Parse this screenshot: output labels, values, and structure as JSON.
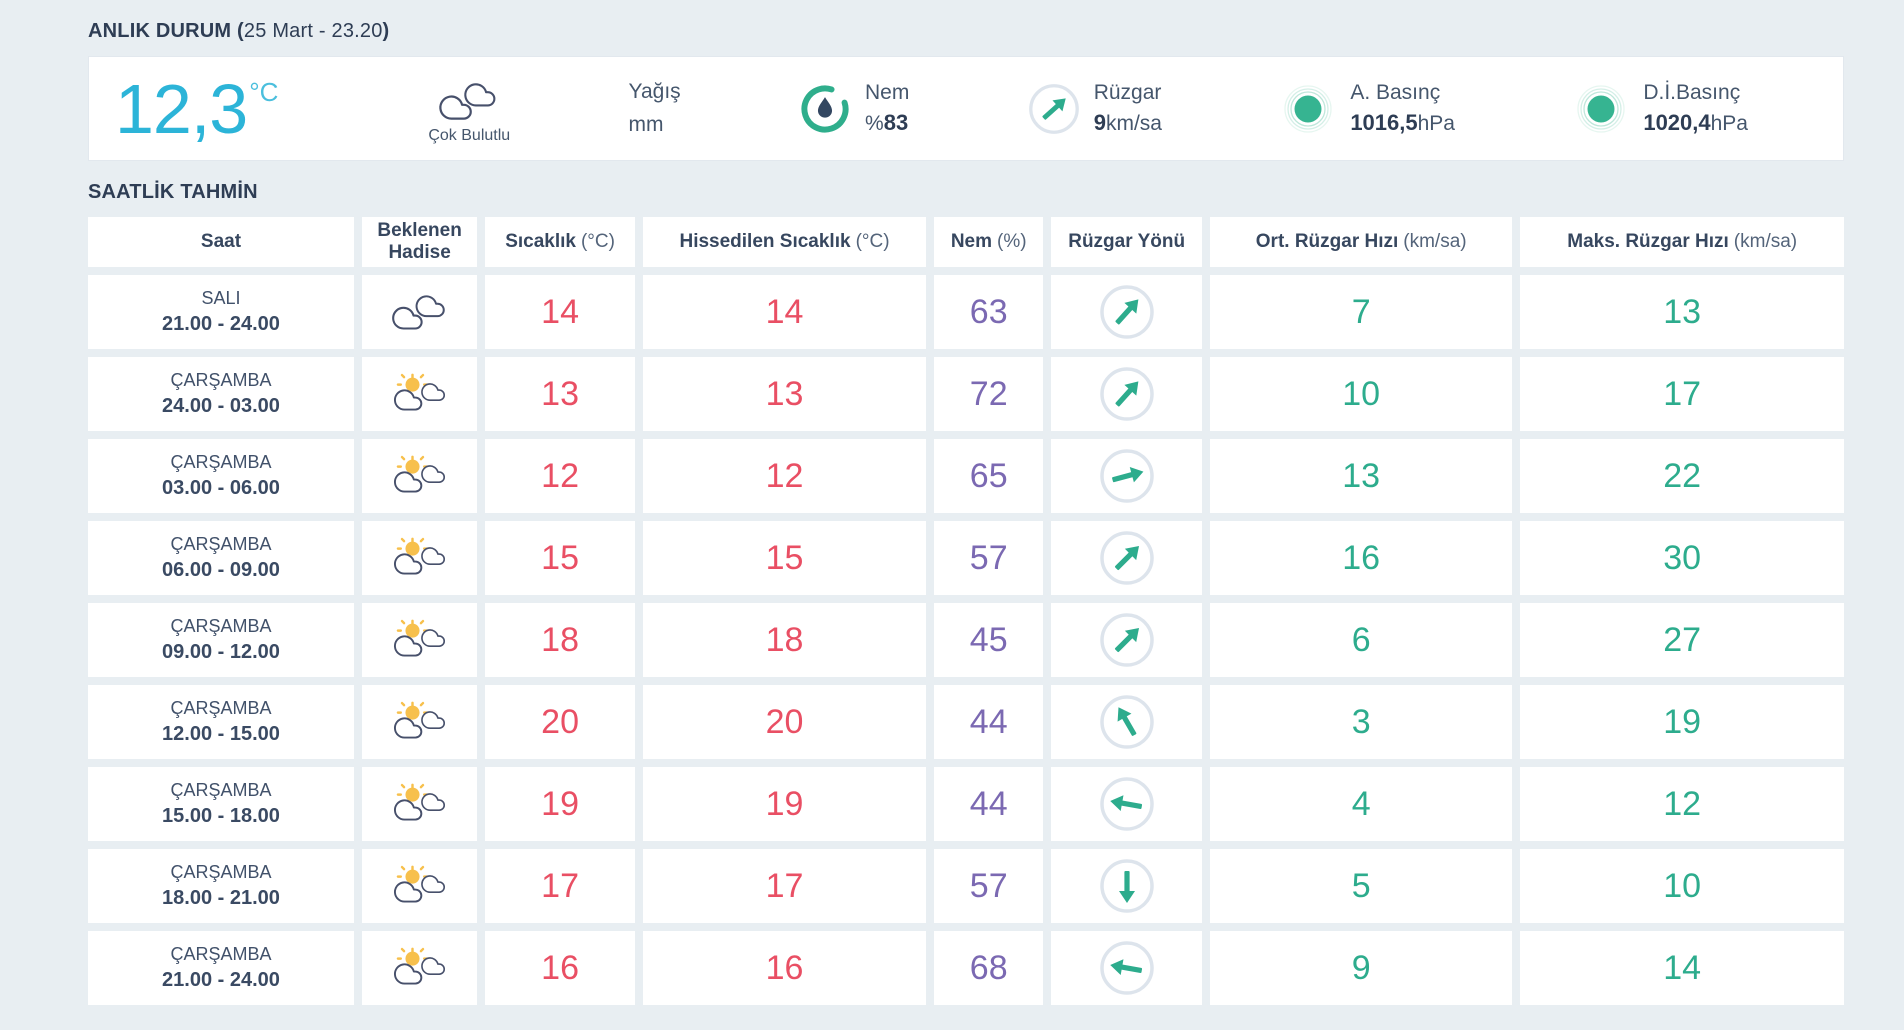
{
  "page": {
    "anlik_prefix": "ANLIK DURUM (",
    "anlik_date": "25 Mart - 23.20",
    "anlik_suffix": ")",
    "saatlik_title": "SAATLİK TAHMİN"
  },
  "colors": {
    "cyan": "#2cb4d8",
    "red": "#e94f64",
    "purple": "#7b69b2",
    "teal": "#2dac8d",
    "sun": "#f7c04c",
    "navy": "#37475f",
    "green-dot": "#36b491",
    "bg": "#e8eef2"
  },
  "current": {
    "temperature": "12,3",
    "temperature_unit": "°C",
    "condition": "Çok Bulutlu",
    "precipitation_label": "Yağış",
    "precipitation_unit": "mm",
    "humidity_label": "Nem",
    "humidity_prefix": "%",
    "humidity_value": "83",
    "wind_label": "Rüzgar",
    "wind_value": "9",
    "wind_unit": "km/sa",
    "wind_direction_deg": -42,
    "pressure_label": "A. Basınç",
    "pressure_value": "1016,5",
    "pressure_unit": "hPa",
    "sea_pressure_label": "D.İ.Basınç",
    "sea_pressure_value": "1020,4",
    "sea_pressure_unit": "hPa"
  },
  "table": {
    "headers": {
      "time": "Saat",
      "event_line1": "Beklenen",
      "event_line2": "Hadise",
      "temp": "Sıcaklık",
      "temp_unit": "(°C)",
      "feels": "Hissedilen Sıcaklık",
      "feels_unit": "(°C)",
      "humidity": "Nem",
      "humidity_unit": "(%)",
      "wind_dir": "Rüzgar Yönü",
      "avg_wind": "Ort. Rüzgar Hızı",
      "avg_wind_unit": "(km/sa)",
      "max_wind": "Maks. Rüzgar Hızı",
      "max_wind_unit": "(km/sa)"
    },
    "rows": [
      {
        "day": "SALI",
        "time": "21.00 - 24.00",
        "icon": "cloudy",
        "temp": "14",
        "feels": "14",
        "humidity": "63",
        "wind_deg": -48,
        "avg": "7",
        "max": "13"
      },
      {
        "day": "ÇARŞAMBA",
        "time": "24.00 - 03.00",
        "icon": "partly-sunny",
        "temp": "13",
        "feels": "13",
        "humidity": "72",
        "wind_deg": -48,
        "avg": "10",
        "max": "17"
      },
      {
        "day": "ÇARŞAMBA",
        "time": "03.00 - 06.00",
        "icon": "partly-sunny",
        "temp": "12",
        "feels": "12",
        "humidity": "65",
        "wind_deg": -15,
        "avg": "13",
        "max": "22"
      },
      {
        "day": "ÇARŞAMBA",
        "time": "06.00 - 09.00",
        "icon": "partly-sunny",
        "temp": "15",
        "feels": "15",
        "humidity": "57",
        "wind_deg": -45,
        "avg": "16",
        "max": "30"
      },
      {
        "day": "ÇARŞAMBA",
        "time": "09.00 - 12.00",
        "icon": "partly-sunny",
        "temp": "18",
        "feels": "18",
        "humidity": "45",
        "wind_deg": -45,
        "avg": "6",
        "max": "27"
      },
      {
        "day": "ÇARŞAMBA",
        "time": "12.00 - 15.00",
        "icon": "partly-sunny",
        "temp": "20",
        "feels": "20",
        "humidity": "44",
        "wind_deg": -120,
        "avg": "3",
        "max": "19"
      },
      {
        "day": "ÇARŞAMBA",
        "time": "15.00 - 18.00",
        "icon": "partly-sunny",
        "temp": "19",
        "feels": "19",
        "humidity": "44",
        "wind_deg": -170,
        "avg": "4",
        "max": "12"
      },
      {
        "day": "ÇARŞAMBA",
        "time": "18.00 - 21.00",
        "icon": "partly-sunny",
        "temp": "17",
        "feels": "17",
        "humidity": "57",
        "wind_deg": 90,
        "avg": "5",
        "max": "10"
      },
      {
        "day": "ÇARŞAMBA",
        "time": "21.00 - 24.00",
        "icon": "partly-sunny",
        "temp": "16",
        "feels": "16",
        "humidity": "68",
        "wind_deg": -170,
        "avg": "9",
        "max": "14"
      }
    ]
  }
}
